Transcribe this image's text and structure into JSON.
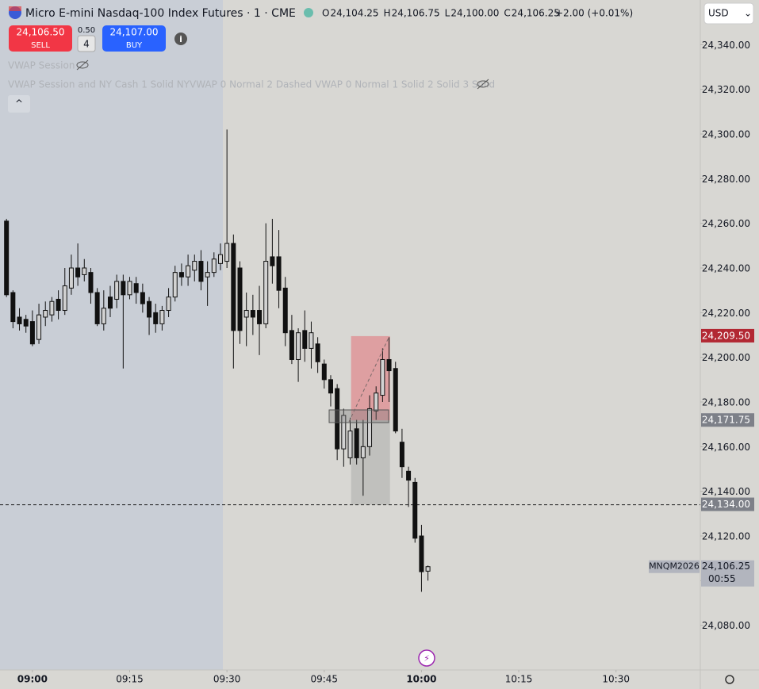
{
  "header": {
    "title": "Micro E-mini Nasdaq-100 Index Futures · 1 · CME",
    "ohlc": [
      {
        "key": "O",
        "value": "24,104.25"
      },
      {
        "key": "H",
        "value": "24,106.75"
      },
      {
        "key": "L",
        "value": "24,100.00"
      },
      {
        "key": "C",
        "value": "24,106.25"
      }
    ],
    "change": "+2.00 (+0.01%)",
    "currency": "USD"
  },
  "trade": {
    "sell_price": "24,106.50",
    "sell": "SELL",
    "qty_step": "0.50",
    "qty": "4",
    "buy_price": "24,107.00",
    "buy": "BUY"
  },
  "indicators": [
    "VWAP Session",
    "VWAP Session and NY Cash 1 Solid NYVWAP 0 Normal 2 Dashed VWAP 0 Normal 1 Solid 2 Solid 3 Solid"
  ],
  "chart_data": {
    "type": "candlestick",
    "x": [
      "08:56",
      "08:57",
      "08:58",
      "08:59",
      "09:00",
      "09:01",
      "09:02",
      "09:03",
      "09:04",
      "09:05",
      "09:06",
      "09:07",
      "09:08",
      "09:09",
      "09:10",
      "09:11",
      "09:12",
      "09:13",
      "09:14",
      "09:15",
      "09:16",
      "09:17",
      "09:18",
      "09:19",
      "09:20",
      "09:21",
      "09:22",
      "09:23",
      "09:24",
      "09:25",
      "09:26",
      "09:27",
      "09:28",
      "09:29",
      "09:30",
      "09:31",
      "09:32",
      "09:33",
      "09:34",
      "09:35",
      "09:36",
      "09:37",
      "09:38",
      "09:39",
      "09:40",
      "09:41",
      "09:42",
      "09:43",
      "09:44",
      "09:45",
      "09:46",
      "09:47",
      "09:48",
      "09:49",
      "09:50",
      "09:51",
      "09:52",
      "09:53",
      "09:54",
      "09:55",
      "09:56",
      "09:57",
      "09:58",
      "09:59",
      "10:00",
      "10:01"
    ],
    "open": [
      24261,
      24229,
      24218,
      24217,
      24216,
      24208,
      24218,
      24219,
      24226,
      24221,
      24231,
      24240,
      24237,
      24238,
      24229,
      24215,
      24227,
      24226,
      24234,
      24228,
      24233,
      24229,
      24225,
      24220,
      24215,
      24221,
      24227,
      24238,
      24236,
      24239,
      24243,
      24236,
      24238,
      24242,
      24243,
      24251,
      24240,
      24218,
      24221,
      24221,
      24215,
      24245,
      24245,
      24231,
      24212,
      24199,
      24212,
      24204,
      24206,
      24197,
      24190,
      24186,
      24159,
      24155,
      24168,
      24155,
      24160,
      24176,
      24183,
      24199,
      24195,
      24162,
      24149,
      24144,
      24120,
      24104.25
    ],
    "high": [
      24262,
      24230,
      24222,
      24219,
      24221,
      24224,
      24225,
      24227,
      24230,
      24240,
      24246,
      24251,
      24244,
      24240,
      24231,
      24230,
      24232,
      24237,
      24237,
      24236,
      24236,
      24233,
      24227,
      24224,
      24223,
      24231,
      24241,
      24242,
      24246,
      24246,
      24248,
      24243,
      24247,
      24251,
      24302,
      24255,
      24243,
      24229,
      24228,
      24232,
      24260,
      24262,
      24257,
      24236,
      24219,
      24213,
      24221,
      24216,
      24209,
      24199,
      24192,
      24188,
      24177,
      24173,
      24172,
      24172,
      24183,
      24187,
      24204,
      24209,
      24198,
      24168,
      24151,
      24146,
      24125,
      24106.75
    ],
    "low": [
      24227,
      24213,
      24212,
      24211,
      24205,
      24206,
      24214,
      24216,
      24217,
      24219,
      24228,
      24232,
      24234,
      24224,
      24214,
      24212,
      24218,
      24222,
      24195,
      24226,
      24224,
      24220,
      24210,
      24211,
      24212,
      24218,
      24225,
      24232,
      24232,
      24234,
      24230,
      24223,
      24236,
      24239,
      24240,
      24195,
      24206,
      24205,
      24210,
      24201,
      24213,
      24233,
      24222,
      24205,
      24197,
      24189,
      24198,
      24195,
      24193,
      24186,
      24178,
      24154,
      24151,
      24152,
      24152,
      24138,
      24156,
      24172,
      24180,
      24180,
      24166,
      24146,
      24133,
      24117,
      24095,
      24100
    ],
    "close": [
      24228,
      24216,
      24215,
      24214,
      24206,
      24219,
      24221,
      24225,
      24221,
      24232,
      24240,
      24236,
      24240,
      24229,
      24215,
      24222,
      24222,
      24234,
      24228,
      24234,
      24229,
      24224,
      24218,
      24215,
      24221,
      24227,
      24238,
      24236,
      24241,
      24243,
      24234,
      24238,
      24244,
      24246,
      24251,
      24212,
      24212,
      24221,
      24218,
      24215,
      24243,
      24241,
      24230,
      24211,
      24199,
      24211,
      24204,
      24211,
      24198,
      24190,
      24184,
      24159,
      24174,
      24167,
      24155,
      24160,
      24177,
      24184,
      24199,
      24194,
      24167,
      24151,
      24145,
      24119,
      24104,
      24106.25
    ],
    "up_color": "#d2d2d2",
    "down_color": "#111111",
    "xlim": [
      "08:55",
      "10:43"
    ],
    "ylim": [
      24060,
      24360
    ],
    "xticks": [
      "09:00",
      "09:15",
      "09:30",
      "09:45",
      "10:00",
      "10:15",
      "10:30"
    ],
    "yticks": [
      {
        "value": 24340,
        "label": "24,340.00"
      },
      {
        "value": 24320,
        "label": "24,320.00"
      },
      {
        "value": 24300,
        "label": "24,300.00"
      },
      {
        "value": 24280,
        "label": "24,280.00"
      },
      {
        "value": 24260,
        "label": "24,260.00"
      },
      {
        "value": 24240,
        "label": "24,240.00"
      },
      {
        "value": 24220,
        "label": "24,220.00"
      },
      {
        "value": 24200,
        "label": "24,200.00"
      },
      {
        "value": 24180,
        "label": "24,180.00"
      },
      {
        "value": 24160,
        "label": "24,160.00"
      },
      {
        "value": 24140,
        "label": "24,140.00"
      },
      {
        "value": 24120,
        "label": "24,120.00"
      },
      {
        "value": 24100,
        "label": "24,100.00"
      },
      {
        "value": 24080,
        "label": "24,080.00"
      }
    ],
    "price_lines": [
      {
        "value": 24209.5,
        "label": "24,209.50",
        "color": "#b22833"
      },
      {
        "value": 24171.75,
        "label": "24,171.75",
        "color": "#7d8088"
      },
      {
        "value": 24134.0,
        "label": "24,134.00",
        "color": "#7d8088"
      }
    ],
    "symbol": "MNQM2026",
    "last_price": {
      "value": 24106.25,
      "label": "24,106.25"
    },
    "countdown": "00:55"
  }
}
